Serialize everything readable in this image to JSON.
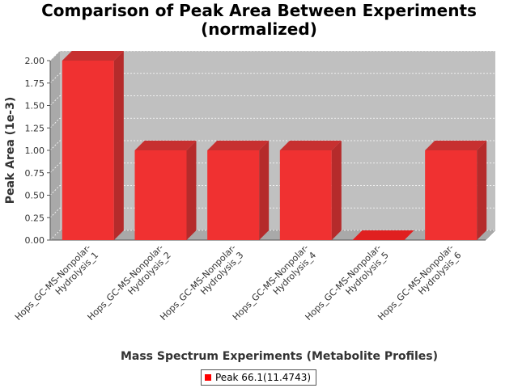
{
  "title": [
    "Comparison of Peak Area Between Experiments",
    "(normalized)"
  ],
  "chart_data": {
    "type": "bar",
    "title": "Comparison of Peak Area Between Experiments (normalized)",
    "xlabel": "Mass Spectrum Experiments (Metabolite Profiles)",
    "ylabel": "Peak Area (1e-3)",
    "categories": [
      [
        "Hops_GC-MS-Nonpolar-",
        "Hydrolysis_1"
      ],
      [
        "Hops_GC-MS-Nonpolar-",
        "Hydrolysis_2"
      ],
      [
        "Hops_GC-MS-Nonpolar-",
        "Hydrolysis_3"
      ],
      [
        "Hops_GC-MS-Nonpolar-",
        "Hydrolysis_4"
      ],
      [
        "Hops_GC-MS-Nonpolar-",
        "Hydrolysis_5"
      ],
      [
        "Hops_GC-MS-Nonpolar-",
        "Hydrolysis_6"
      ]
    ],
    "series": [
      {
        "name": "Peak 66.1(11.4743)",
        "values": [
          2.0,
          1.0,
          1.0,
          1.0,
          0.0,
          1.0
        ],
        "color": "#ff0000"
      }
    ],
    "ylim": [
      0,
      2.0
    ],
    "yticks": [
      "0.00",
      "0.25",
      "0.50",
      "0.75",
      "1.00",
      "1.25",
      "1.50",
      "1.75",
      "2.00"
    ],
    "grid": true,
    "legend": "bottom",
    "plot_background": "#c0c0c0"
  }
}
